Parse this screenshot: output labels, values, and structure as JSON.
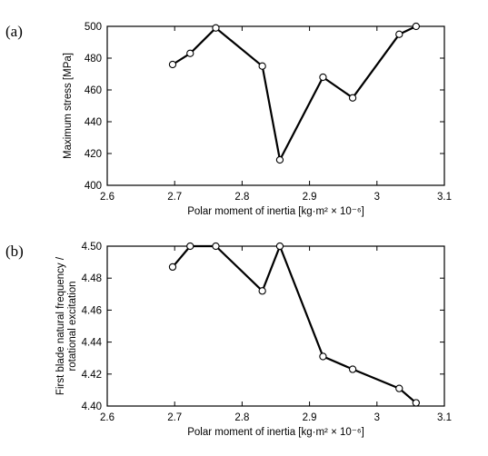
{
  "chart_data": [
    {
      "type": "line",
      "panel_label": "(a)",
      "title": "",
      "xlabel": "Polar moment of inertia [kg·m² × 10⁻⁶]",
      "ylabel": "Maximum stress [MPa]",
      "xlim": [
        2.6,
        3.1
      ],
      "ylim": [
        400,
        500
      ],
      "xticks": [
        "2.6",
        "2.7",
        "2.8",
        "2.9",
        "3",
        "3.1"
      ],
      "yticks": [
        "400",
        "420",
        "440",
        "460",
        "480",
        "500"
      ],
      "grid": false,
      "legend": "none",
      "marker": "open-circle",
      "x": [
        2.697,
        2.723,
        2.761,
        2.83,
        2.856,
        2.92,
        2.964,
        3.033,
        3.058
      ],
      "y": [
        476,
        483,
        499,
        475,
        416,
        468,
        455,
        495,
        500
      ]
    },
    {
      "type": "line",
      "panel_label": "(b)",
      "title": "",
      "xlabel": "Polar moment of inertia [kg·m² × 10⁻⁶]",
      "ylabel_lines": [
        "First blade natural frequency /",
        "rotational excitation"
      ],
      "xlim": [
        2.6,
        3.1
      ],
      "ylim": [
        4.4,
        4.5
      ],
      "xticks": [
        "2.6",
        "2.7",
        "2.8",
        "2.9",
        "3",
        "3.1"
      ],
      "yticks": [
        "4.40",
        "4.42",
        "4.44",
        "4.46",
        "4.48",
        "4.50"
      ],
      "grid": false,
      "legend": "none",
      "marker": "open-circle",
      "x": [
        2.697,
        2.723,
        2.761,
        2.83,
        2.856,
        2.92,
        2.964,
        3.033,
        3.058
      ],
      "y": [
        4.487,
        4.5,
        4.5,
        4.472,
        4.5,
        4.431,
        4.423,
        4.411,
        4.402
      ]
    }
  ]
}
